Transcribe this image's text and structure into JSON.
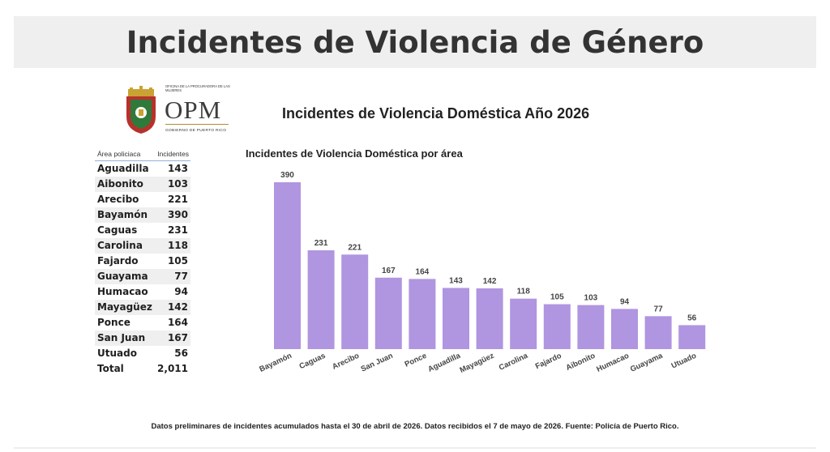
{
  "header": {
    "title": "Incidentes de Violencia de Género"
  },
  "logo": {
    "tagline": "Oficina de la Procuradora de las Mujeres",
    "acronym": "OPM",
    "government": "Gobierno de Puerto Rico"
  },
  "subtitle": "Incidentes de Violencia Doméstica Año 2026",
  "table": {
    "headers": {
      "area": "Área policiaca",
      "incidents": "Incidentes"
    },
    "rows": [
      {
        "area": "Aguadilla",
        "value": "143"
      },
      {
        "area": "Aibonito",
        "value": "103"
      },
      {
        "area": "Arecibo",
        "value": "221"
      },
      {
        "area": "Bayamón",
        "value": "390"
      },
      {
        "area": "Caguas",
        "value": "231"
      },
      {
        "area": "Carolina",
        "value": "118"
      },
      {
        "area": "Fajardo",
        "value": "105"
      },
      {
        "area": "Guayama",
        "value": "77"
      },
      {
        "area": "Humacao",
        "value": "94"
      },
      {
        "area": "Mayagüez",
        "value": "142"
      },
      {
        "area": "Ponce",
        "value": "164"
      },
      {
        "area": "San Juan",
        "value": "167"
      },
      {
        "area": "Utuado",
        "value": "56"
      }
    ],
    "total": {
      "label": "Total",
      "value": "2,011"
    }
  },
  "chart_data": {
    "type": "bar",
    "title": "Incidentes de Violencia Doméstica por área",
    "categories": [
      "Bayamón",
      "Caguas",
      "Arecibo",
      "San Juan",
      "Ponce",
      "Aguadilla",
      "Mayagüez",
      "Carolina",
      "Fajardo",
      "Aibonito",
      "Humacao",
      "Guayama",
      "Utuado"
    ],
    "values": [
      390,
      231,
      221,
      167,
      164,
      143,
      142,
      118,
      105,
      103,
      94,
      77,
      56
    ],
    "ylim": [
      0,
      390
    ],
    "bar_color": "#b095e0",
    "grid": false,
    "legend": "none"
  },
  "footer": "Datos preliminares de incidentes acumulados hasta el 30 de abril de 2026. Datos recibidos el 7 de mayo de 2026. Fuente: Policía de Puerto Rico."
}
